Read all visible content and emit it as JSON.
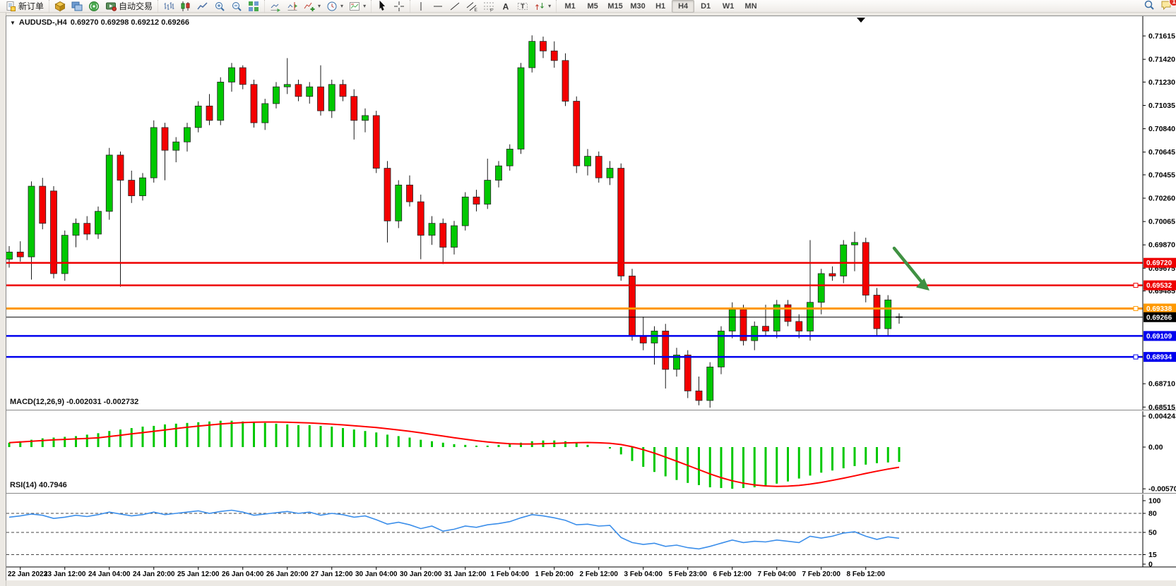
{
  "toolbar": {
    "new_order_label": "新订单",
    "auto_trading_label": "自动交易",
    "timeframes": [
      "M1",
      "M5",
      "M15",
      "M30",
      "H1",
      "H4",
      "D1",
      "W1",
      "MN"
    ],
    "active_timeframe": "H4",
    "notification_count": "1",
    "groups": [
      [
        {
          "name": "new-order-button",
          "icon": "new-order",
          "label_key": "new_order_label"
        }
      ],
      [
        {
          "name": "market-watch-button",
          "icon": "cube-gold"
        },
        {
          "name": "chart-windows-button",
          "icon": "windows-blue"
        },
        {
          "name": "signals-button",
          "icon": "signal-green"
        },
        {
          "name": "auto-trading-button",
          "icon": "autotrade",
          "label_key": "auto_trading_label"
        }
      ],
      [
        {
          "name": "bar-chart-button",
          "icon": "bars"
        },
        {
          "name": "candlestick-chart-button",
          "icon": "candles"
        },
        {
          "name": "line-chart-button",
          "icon": "line"
        },
        {
          "name": "zoom-in-button",
          "icon": "zoom-in"
        },
        {
          "name": "zoom-out-button",
          "icon": "zoom-out"
        },
        {
          "name": "tile-windows-button",
          "icon": "tile"
        }
      ],
      [
        {
          "name": "auto-scroll-button",
          "icon": "autoscroll"
        },
        {
          "name": "chart-shift-button",
          "icon": "chartshift"
        },
        {
          "name": "indicators-button",
          "icon": "indicator-add",
          "dropdown": true
        },
        {
          "name": "periods-button",
          "icon": "clock",
          "dropdown": true
        },
        {
          "name": "templates-button",
          "icon": "template",
          "dropdown": true
        }
      ],
      [
        {
          "name": "cursor-button",
          "icon": "cursor"
        },
        {
          "name": "crosshair-button",
          "icon": "crosshair"
        }
      ],
      [
        {
          "name": "vertical-line-button",
          "icon": "vline"
        },
        {
          "name": "horizontal-line-button",
          "icon": "hline"
        },
        {
          "name": "trendline-button",
          "icon": "trendline"
        },
        {
          "name": "channel-button",
          "icon": "channel"
        },
        {
          "name": "fibonacci-button",
          "icon": "fibo"
        },
        {
          "name": "text-button",
          "icon": "text-a"
        },
        {
          "name": "label-button",
          "icon": "text-t"
        },
        {
          "name": "arrows-button",
          "icon": "arrows",
          "dropdown": true
        }
      ]
    ],
    "right_buttons": [
      {
        "name": "search-button",
        "icon": "search"
      },
      {
        "name": "notifications-button",
        "icon": "chat",
        "badge": "1"
      }
    ]
  },
  "chart": {
    "title_symbol": "AUDUSD-,H4",
    "title_quotes": "0.69270 0.69298 0.69212 0.69266"
  },
  "chart_data": {
    "type": "candlestick",
    "symbol": "AUDUSD",
    "timeframe": "H4",
    "bull_color": "#00C800",
    "bear_color": "#F40000",
    "wick_color": "#1A1A1A",
    "price_axis": {
      "top_price": 0.7178,
      "bottom_price": 0.68493,
      "ticks": [
        "0.71615",
        "0.71420",
        "0.71230",
        "0.71035",
        "0.70840",
        "0.70645",
        "0.70455",
        "0.70260",
        "0.70065",
        "0.69870",
        "0.69675",
        "0.69485",
        "0.68710",
        "0.68515"
      ]
    },
    "hlines": [
      {
        "label": "0.69720",
        "value": 0.6972,
        "color": "#EE0000",
        "width": 2.5,
        "handle": false
      },
      {
        "label": "0.69532",
        "value": 0.69532,
        "color": "#EE0000",
        "width": 2.5,
        "handle": true
      },
      {
        "label": "0.69338",
        "value": 0.69338,
        "color": "#FF9900",
        "width": 3,
        "handle": true
      },
      {
        "label": "0.69266",
        "value": 0.69266,
        "color": "#000000",
        "width": 1,
        "handle": false,
        "is_current_price": true
      },
      {
        "label": "0.69109",
        "value": 0.69109,
        "color": "#0000EE",
        "width": 2.5,
        "handle": false
      },
      {
        "label": "0.68934",
        "value": 0.68934,
        "color": "#0000EE",
        "width": 2.5,
        "handle": true
      }
    ],
    "candles": [
      [
        0.6975,
        0.6986,
        0.6968,
        0.6981
      ],
      [
        0.6981,
        0.699,
        0.6973,
        0.6977
      ],
      [
        0.6977,
        0.704,
        0.6958,
        0.7036
      ],
      [
        0.7036,
        0.7043,
        0.7,
        0.7005
      ],
      [
        0.7032,
        0.7036,
        0.6959,
        0.6963
      ],
      [
        0.6963,
        0.6999,
        0.6957,
        0.6995
      ],
      [
        0.6995,
        0.7009,
        0.6985,
        0.7005
      ],
      [
        0.7005,
        0.7011,
        0.6991,
        0.6996
      ],
      [
        0.6996,
        0.7019,
        0.6992,
        0.7015
      ],
      [
        0.7015,
        0.7068,
        0.7008,
        0.7062
      ],
      [
        0.7062,
        0.7065,
        0.6952,
        0.7041
      ],
      [
        0.7041,
        0.7049,
        0.7022,
        0.7028
      ],
      [
        0.7028,
        0.7047,
        0.7024,
        0.7043
      ],
      [
        0.7043,
        0.7091,
        0.7039,
        0.7085
      ],
      [
        0.7085,
        0.7089,
        0.7041,
        0.7066
      ],
      [
        0.7066,
        0.7077,
        0.7056,
        0.7073
      ],
      [
        0.7073,
        0.7089,
        0.7065,
        0.7085
      ],
      [
        0.7085,
        0.7107,
        0.7081,
        0.7103
      ],
      [
        0.7103,
        0.7113,
        0.7087,
        0.7091
      ],
      [
        0.7091,
        0.7127,
        0.7087,
        0.7123
      ],
      [
        0.7123,
        0.7139,
        0.7115,
        0.7135
      ],
      [
        0.7135,
        0.7137,
        0.7117,
        0.7121
      ],
      [
        0.7121,
        0.7125,
        0.7085,
        0.7089
      ],
      [
        0.7089,
        0.7109,
        0.7083,
        0.7105
      ],
      [
        0.7105,
        0.7123,
        0.7101,
        0.7119
      ],
      [
        0.7119,
        0.7143,
        0.7113,
        0.7121
      ],
      [
        0.7121,
        0.7125,
        0.7107,
        0.7111
      ],
      [
        0.7111,
        0.7123,
        0.7105,
        0.7119
      ],
      [
        0.7119,
        0.7137,
        0.7095,
        0.7099
      ],
      [
        0.7099,
        0.7125,
        0.7093,
        0.7121
      ],
      [
        0.7121,
        0.7125,
        0.7107,
        0.7111
      ],
      [
        0.7111,
        0.7117,
        0.7075,
        0.7091
      ],
      [
        0.7091,
        0.7101,
        0.7081,
        0.7095
      ],
      [
        0.7095,
        0.7099,
        0.7047,
        0.7051
      ],
      [
        0.7051,
        0.7057,
        0.6989,
        0.7007
      ],
      [
        0.7007,
        0.7041,
        0.7001,
        0.7037
      ],
      [
        0.7037,
        0.7045,
        0.7019,
        0.7023
      ],
      [
        0.7023,
        0.7029,
        0.6975,
        0.6995
      ],
      [
        0.6995,
        0.7011,
        0.6987,
        0.7005
      ],
      [
        0.7005,
        0.7009,
        0.6971,
        0.6985
      ],
      [
        0.6985,
        0.7007,
        0.6979,
        0.7003
      ],
      [
        0.7003,
        0.7031,
        0.6999,
        0.7027
      ],
      [
        0.7027,
        0.7033,
        0.7015,
        0.7021
      ],
      [
        0.7021,
        0.7059,
        0.7017,
        0.7041
      ],
      [
        0.7041,
        0.7057,
        0.7035,
        0.7053
      ],
      [
        0.7053,
        0.7071,
        0.7049,
        0.7067
      ],
      [
        0.7067,
        0.7139,
        0.7063,
        0.7135
      ],
      [
        0.7135,
        0.7162,
        0.7131,
        0.7157
      ],
      [
        0.7157,
        0.7161,
        0.7143,
        0.7149
      ],
      [
        0.7149,
        0.7157,
        0.7135,
        0.7141
      ],
      [
        0.7141,
        0.7147,
        0.7103,
        0.7107
      ],
      [
        0.7107,
        0.7111,
        0.7047,
        0.7053
      ],
      [
        0.7053,
        0.7067,
        0.7045,
        0.7061
      ],
      [
        0.7061,
        0.7065,
        0.7039,
        0.7043
      ],
      [
        0.7043,
        0.7057,
        0.7037,
        0.7051
      ],
      [
        0.7051,
        0.7055,
        0.6957,
        0.6961
      ],
      [
        0.6961,
        0.6967,
        0.6907,
        0.6911
      ],
      [
        0.6911,
        0.6927,
        0.6899,
        0.6905
      ],
      [
        0.6905,
        0.6919,
        0.6887,
        0.6915
      ],
      [
        0.6915,
        0.6921,
        0.6867,
        0.6883
      ],
      [
        0.6883,
        0.6901,
        0.6877,
        0.6895
      ],
      [
        0.6895,
        0.6899,
        0.6859,
        0.6865
      ],
      [
        0.6865,
        0.6877,
        0.6853,
        0.6857
      ],
      [
        0.6857,
        0.6889,
        0.6851,
        0.6885
      ],
      [
        0.6885,
        0.6919,
        0.6879,
        0.6915
      ],
      [
        0.6915,
        0.6939,
        0.6909,
        0.6933
      ],
      [
        0.6933,
        0.6937,
        0.6903,
        0.6907
      ],
      [
        0.6907,
        0.6923,
        0.6899,
        0.6919
      ],
      [
        0.6919,
        0.6937,
        0.6911,
        0.6915
      ],
      [
        0.6915,
        0.6941,
        0.6909,
        0.6937
      ],
      [
        0.6937,
        0.6941,
        0.6919,
        0.6923
      ],
      [
        0.6923,
        0.6929,
        0.6909,
        0.6915
      ],
      [
        0.6915,
        0.6991,
        0.6907,
        0.6939
      ],
      [
        0.6939,
        0.6967,
        0.6929,
        0.6963
      ],
      [
        0.6963,
        0.6969,
        0.6957,
        0.6961
      ],
      [
        0.6961,
        0.6991,
        0.6955,
        0.6987
      ],
      [
        0.6987,
        0.6998,
        0.6965,
        0.6989
      ],
      [
        0.6989,
        0.6993,
        0.6939,
        0.6945
      ],
      [
        0.6945,
        0.6951,
        0.6911,
        0.6917
      ],
      [
        0.6917,
        0.6945,
        0.6911,
        0.6941
      ],
      [
        0.6927,
        0.69298,
        0.69212,
        0.69266
      ]
    ],
    "macd": {
      "label": "MACD(12,26,9) -0.002031 -0.002732",
      "histogram_color": "#00C800",
      "signal_color": "#FF0000",
      "axis": [
        {
          "label": "0.004243",
          "value": 0.004243
        },
        {
          "label": "0.00",
          "value": 0
        },
        {
          "label": "-0.005709",
          "value": -0.005709
        }
      ],
      "values": [
        0.0006,
        0.0008,
        0.001,
        0.0012,
        0.0013,
        0.0014,
        0.0015,
        0.0017,
        0.0019,
        0.0022,
        0.0024,
        0.0026,
        0.0028,
        0.0029,
        0.0031,
        0.0032,
        0.0033,
        0.0034,
        0.0035,
        0.0036,
        0.0036,
        0.0035,
        0.0034,
        0.0033,
        0.0032,
        0.0031,
        0.003,
        0.003,
        0.0029,
        0.0028,
        0.0026,
        0.0024,
        0.0022,
        0.002,
        0.0017,
        0.0015,
        0.0013,
        0.001,
        0.0008,
        0.0006,
        0.0004,
        0.0003,
        0.0002,
        0.0002,
        0.0003,
        0.0004,
        0.0006,
        0.0008,
        0.0009,
        0.0009,
        0.0008,
        0.0006,
        0.0003,
        0.0,
        -0.0002,
        -0.001,
        -0.0019,
        -0.0027,
        -0.0034,
        -0.004,
        -0.0045,
        -0.0049,
        -0.0052,
        -0.0055,
        -0.0056,
        -0.0057,
        -0.0056,
        -0.0055,
        -0.0053,
        -0.005,
        -0.0047,
        -0.0043,
        -0.0039,
        -0.0035,
        -0.0032,
        -0.0029,
        -0.0026,
        -0.0024,
        -0.0022,
        -0.0021,
        -0.00203
      ]
    },
    "rsi": {
      "label": "RSI(14) 40.7946",
      "line_color": "#3B8EEA",
      "levels": [
        {
          "label": "100",
          "value": 100,
          "line": false
        },
        {
          "label": "80",
          "value": 80,
          "line": true
        },
        {
          "label": "50",
          "value": 50,
          "line": true
        },
        {
          "label": "15",
          "value": 15,
          "line": true
        },
        {
          "label": "0",
          "value": 0,
          "line": false
        }
      ],
      "values": [
        74,
        76,
        79,
        77,
        72,
        74,
        77,
        75,
        78,
        82,
        79,
        76,
        78,
        82,
        78,
        80,
        82,
        84,
        80,
        83,
        85,
        82,
        77,
        79,
        81,
        83,
        80,
        82,
        77,
        80,
        78,
        74,
        76,
        70,
        63,
        66,
        62,
        56,
        60,
        52,
        55,
        60,
        58,
        62,
        64,
        67,
        73,
        78,
        76,
        73,
        69,
        62,
        63,
        60,
        61,
        42,
        34,
        31,
        33,
        28,
        30,
        26,
        24,
        28,
        33,
        38,
        34,
        36,
        35,
        38,
        36,
        34,
        44,
        41,
        44,
        49,
        51,
        44,
        39,
        43,
        40.7946
      ]
    },
    "time_labels": [
      "22 Jan 2023",
      "23 Jan 12:00",
      "24 Jan 04:00",
      "24 Jan 20:00",
      "25 Jan 12:00",
      "26 Jan 04:00",
      "26 Jan 20:00",
      "27 Jan 12:00",
      "30 Jan 04:00",
      "30 Jan 20:00",
      "31 Jan 12:00",
      "1 Feb 04:00",
      "1 Feb 20:00",
      "2 Feb 12:00",
      "3 Feb 04:00",
      "5 Feb 23:00",
      "6 Feb 12:00",
      "7 Feb 04:00",
      "7 Feb 20:00",
      "8 Feb 12:00"
    ],
    "annotation_arrow": {
      "color": "#3F9142"
    }
  }
}
